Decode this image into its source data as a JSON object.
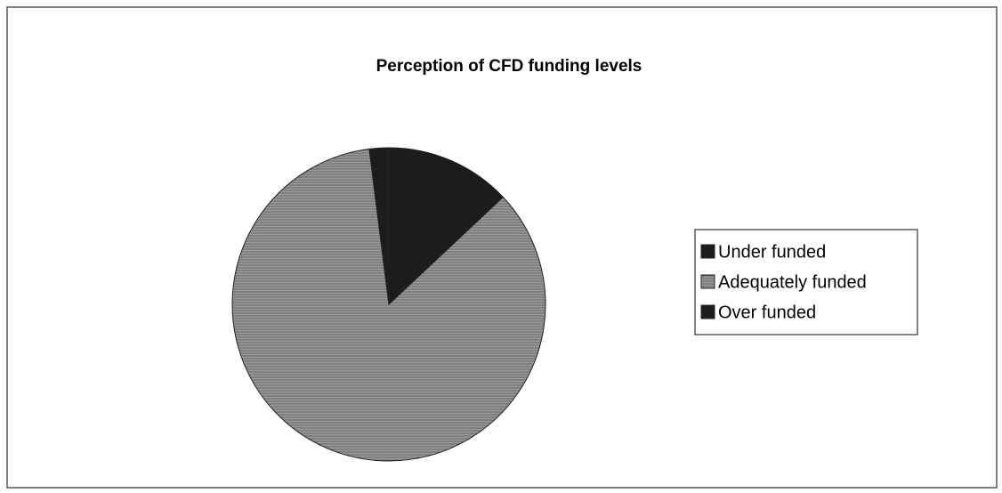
{
  "chart_data": {
    "type": "pie",
    "title": "Perception of CFD funding levels",
    "categories": [
      "Under funded",
      "Adequately funded",
      "Over funded"
    ],
    "values": [
      13,
      85,
      2
    ],
    "colors": [
      "#1c1c1c",
      "#8c8c8c",
      "#1c1c1c"
    ],
    "legend": "right"
  }
}
